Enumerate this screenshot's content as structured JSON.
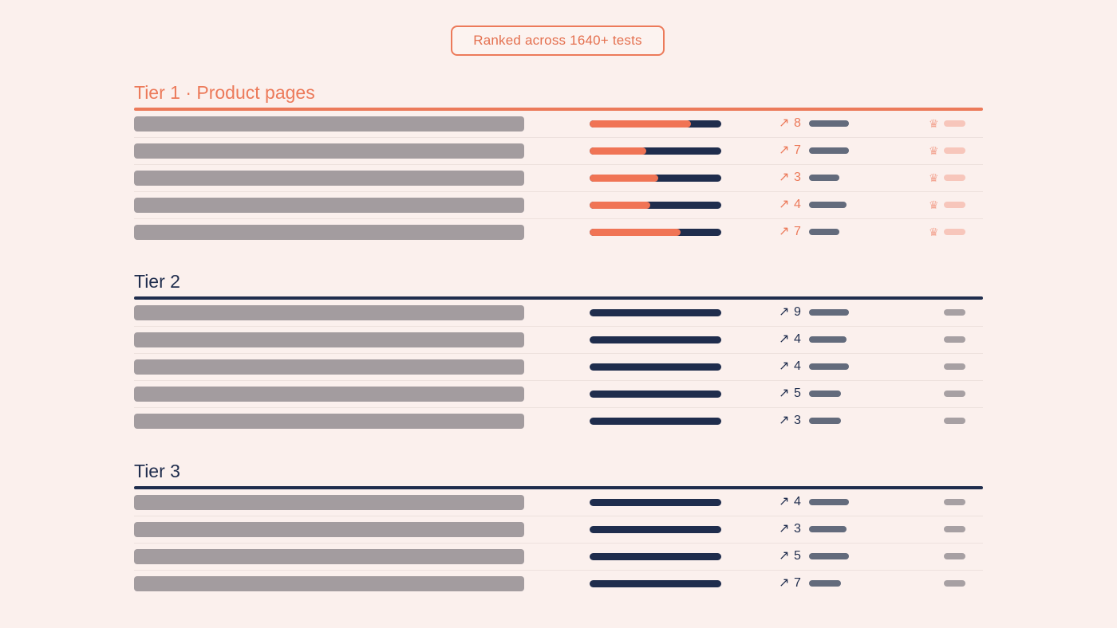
{
  "header": {
    "badge_text": "Ranked across 1640+ tests"
  },
  "icons": {
    "trend": "arrow-up-right-icon",
    "crown": "crown-icon"
  },
  "colors": {
    "background": "#fbf0ed",
    "accent": "#ec7a5a",
    "navy": "#1f2d4d",
    "placeholder_bar": "#a39c9f",
    "mini_bar": "#636b7c",
    "tier1_end": "#f7c6bb",
    "other_end": "#a7a0a3"
  },
  "tiers": [
    {
      "title": "Tier 1 · Product pages",
      "highlighted": true,
      "rows": [
        {
          "progress": 0.77,
          "trend_value": "8",
          "trend_level": 0.32
        },
        {
          "progress": 0.43,
          "trend_value": "7",
          "trend_level": 0.32
        },
        {
          "progress": 0.52,
          "trend_value": "3",
          "trend_level": 0.2
        },
        {
          "progress": 0.46,
          "trend_value": "4",
          "trend_level": 0.29
        },
        {
          "progress": 0.69,
          "trend_value": "7",
          "trend_level": 0.2
        }
      ]
    },
    {
      "title": "Tier 2",
      "highlighted": false,
      "rows": [
        {
          "progress": 0,
          "trend_value": "9",
          "trend_level": 0.32
        },
        {
          "progress": 0,
          "trend_value": "4",
          "trend_level": 0.29
        },
        {
          "progress": 0,
          "trend_value": "4",
          "trend_level": 0.32
        },
        {
          "progress": 0,
          "trend_value": "5",
          "trend_level": 0.22
        },
        {
          "progress": 0,
          "trend_value": "3",
          "trend_level": 0.22
        }
      ]
    },
    {
      "title": "Tier 3",
      "highlighted": false,
      "rows": [
        {
          "progress": 0,
          "trend_value": "4",
          "trend_level": 0.32
        },
        {
          "progress": 0,
          "trend_value": "3",
          "trend_level": 0.29
        },
        {
          "progress": 0,
          "trend_value": "5",
          "trend_level": 0.32
        },
        {
          "progress": 0,
          "trend_value": "7",
          "trend_level": 0.22
        }
      ]
    }
  ]
}
